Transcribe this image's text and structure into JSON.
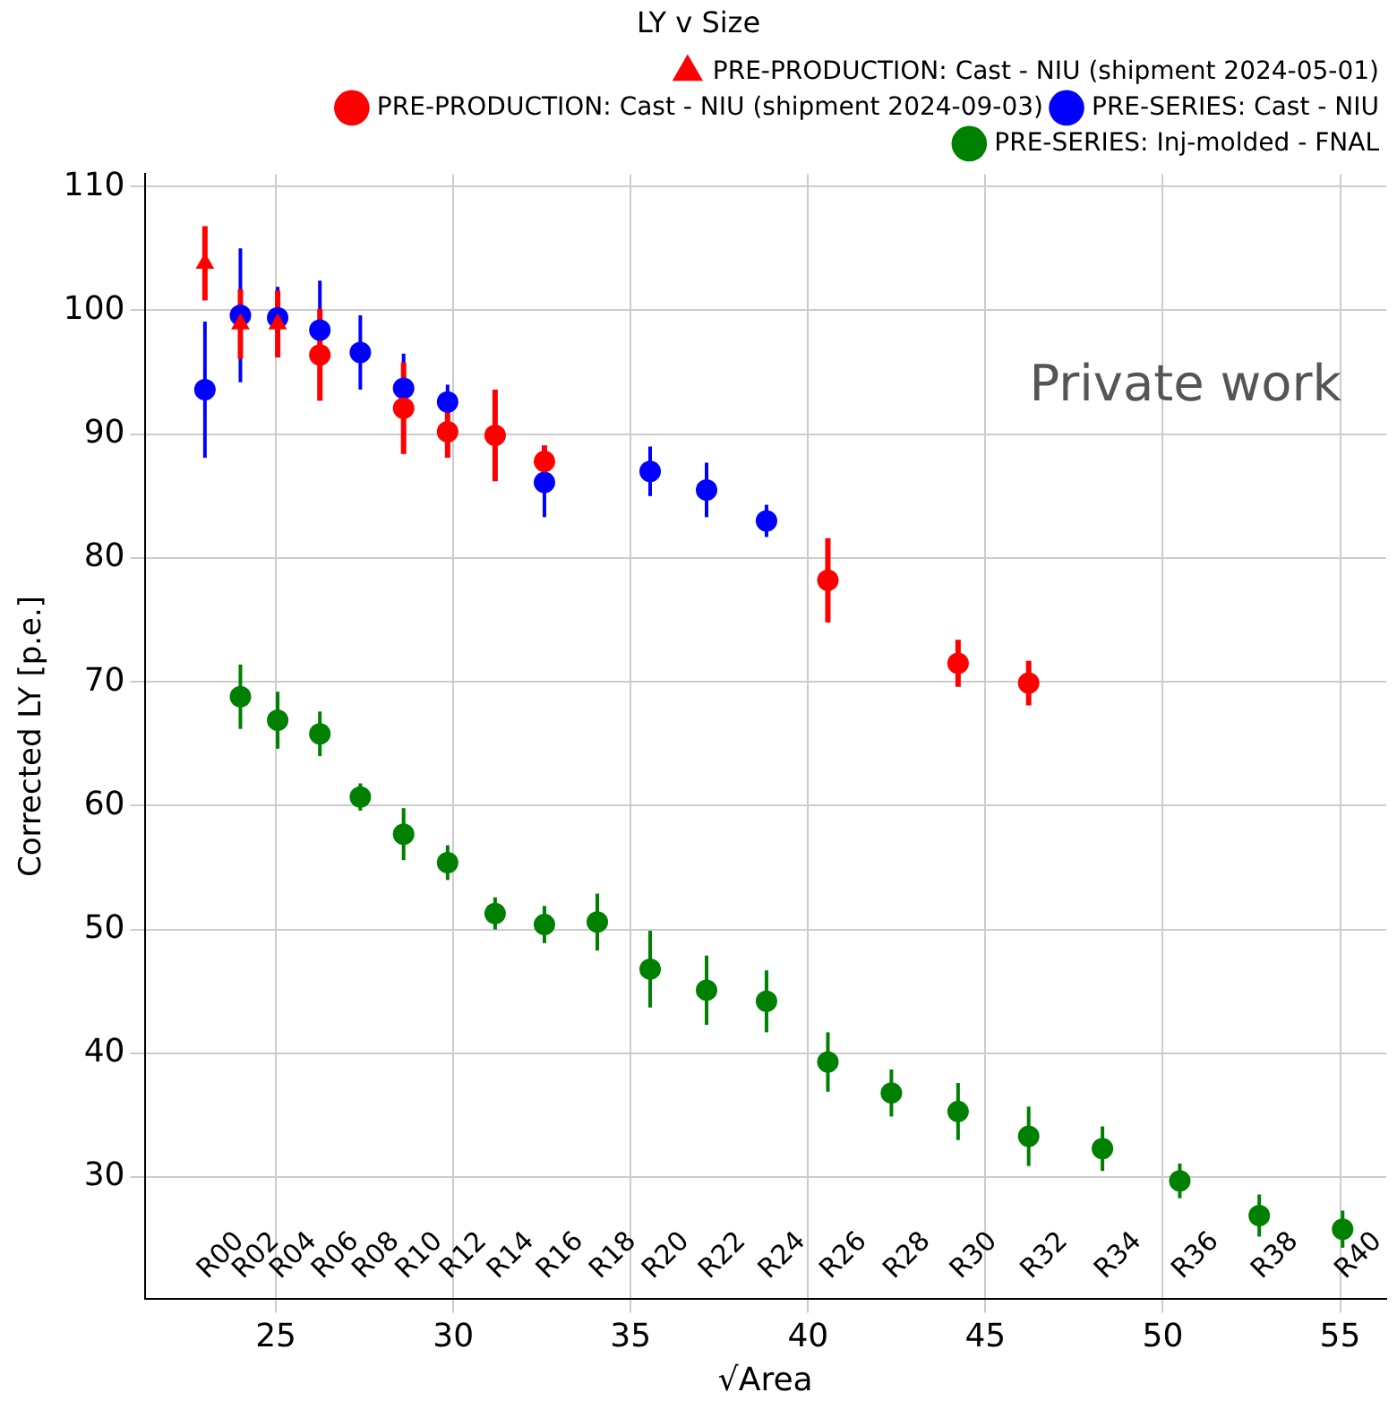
{
  "chart_data": {
    "type": "scatter",
    "title": "LY v Size",
    "xlabel": "√Area",
    "ylabel": "Corrected LY [p.e.]",
    "xlim": [
      21.3,
      56.3
    ],
    "xticks": [
      25,
      30,
      35,
      40,
      45,
      50,
      55
    ],
    "ylim": [
      20.2,
      111
    ],
    "yticks": [
      30,
      40,
      50,
      60,
      70,
      80,
      90,
      100,
      110
    ],
    "grid": true,
    "legend": "top right",
    "series": [
      {
        "name": "PRE-SERIES: Inj-molded - FNAL",
        "color": "#008000",
        "marker": "circle",
        "x": [
          24.0,
          25.05,
          26.24,
          27.38,
          28.6,
          29.84,
          31.18,
          32.57,
          34.06,
          35.55,
          37.14,
          38.83,
          40.56,
          42.35,
          44.23,
          46.22,
          48.3,
          50.48,
          52.72,
          55.07
        ],
        "values": [
          68.8,
          66.9,
          65.8,
          60.7,
          57.7,
          55.4,
          51.3,
          50.4,
          50.6,
          46.8,
          45.1,
          44.2,
          39.3,
          36.8,
          35.3,
          33.3,
          32.3,
          29.7,
          26.9,
          25.8
        ],
        "errors": [
          2.6,
          2.3,
          1.8,
          1.1,
          2.1,
          1.4,
          1.3,
          1.5,
          2.3,
          3.1,
          2.8,
          2.5,
          2.4,
          1.9,
          2.3,
          2.4,
          1.8,
          1.4,
          1.7,
          1.5
        ]
      },
      {
        "name": "PRE-SERIES: Cast - NIU",
        "color": "#0000ff",
        "marker": "circle",
        "x": [
          23.0,
          24.0,
          25.05,
          26.24,
          27.38,
          28.6,
          29.84,
          32.57,
          35.55,
          37.14,
          38.83
        ],
        "values": [
          93.6,
          99.6,
          99.4,
          98.4,
          96.6,
          93.7,
          92.6,
          86.1,
          87.0,
          85.5,
          83.0
        ],
        "errors": [
          5.5,
          5.4,
          2.5,
          4.0,
          3.0,
          2.8,
          1.4,
          2.8,
          2.0,
          2.2,
          1.3
        ]
      },
      {
        "name": "PRE-PRODUCTION: Cast - NIU (shipment 2024-09-03)",
        "color": "#ff0000",
        "marker": "circle",
        "x": [
          26.24,
          28.6,
          29.84,
          31.18,
          32.57,
          40.56,
          44.23,
          46.22
        ],
        "values": [
          96.4,
          92.1,
          90.2,
          89.9,
          87.8,
          78.2,
          71.5,
          69.9
        ],
        "errors": [
          3.7,
          3.7,
          2.1,
          3.7,
          1.3,
          3.4,
          1.9,
          1.8
        ]
      },
      {
        "name": "PRE-PRODUCTION: Cast - NIU (shipment 2024-05-01)",
        "color": "#ff0000",
        "marker": "triangle",
        "x": [
          23.0,
          24.0,
          25.05
        ],
        "values": [
          103.8,
          98.9,
          98.9
        ],
        "errors": [
          3.0,
          2.8,
          2.7
        ]
      }
    ],
    "annotations": [
      "R00",
      "R02",
      "R04",
      "R06",
      "R08",
      "R10",
      "R12",
      "R14",
      "R16",
      "R18",
      "R20",
      "R22",
      "R24",
      "R26",
      "R28",
      "R30",
      "R32",
      "R34",
      "R36",
      "R38",
      "R40",
      "Private work"
    ]
  }
}
